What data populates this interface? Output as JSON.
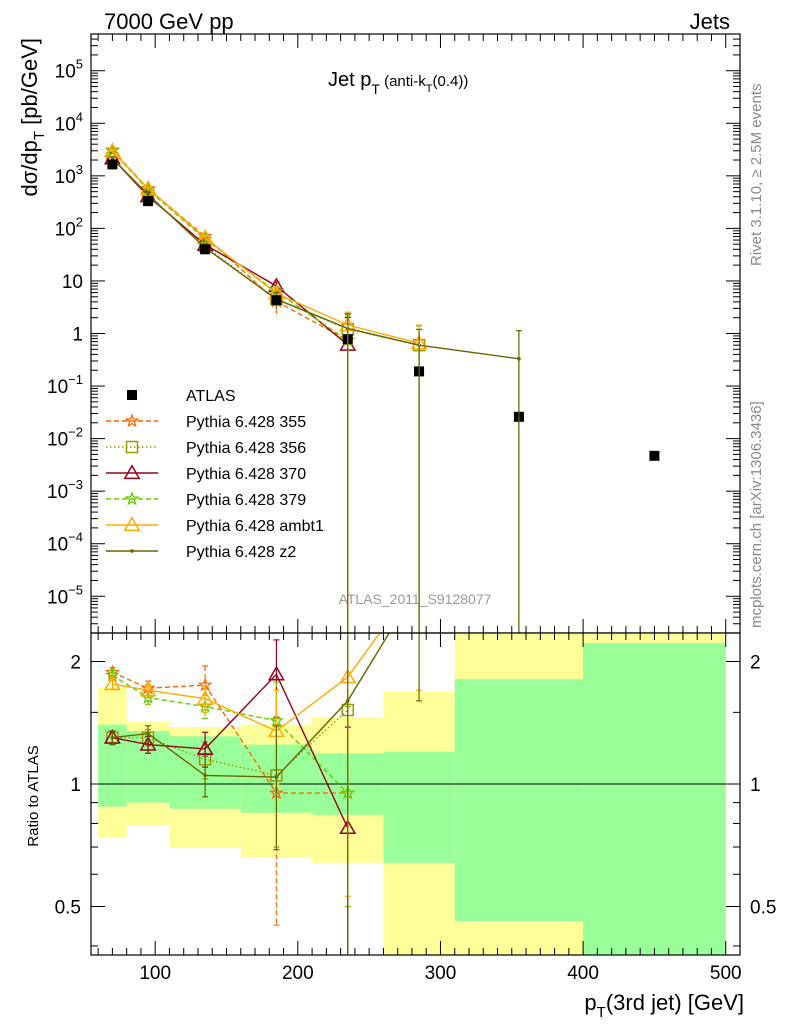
{
  "header": {
    "left": "7000 GeV pp",
    "right": "Jets",
    "side_top": "Rivet 3.1.10, ≥ 2.5M events",
    "side_bottom": "mcplots.cern.ch [arXiv:1306.3436]",
    "watermark": "ATLAS_2011_S9128077"
  },
  "chart_data": [
    {
      "panel": "main",
      "type": "scatter",
      "title": "Jet p_T (anti-k_T(0.4))",
      "title_main": "Jet p",
      "title_sub1": "T",
      "title_paren": " (anti-k",
      "title_sub2": "T",
      "title_end": "(0.4))",
      "ylabel": "dσ/dp_T [pb/GeV]",
      "ylabel_main": "dσ/dp",
      "ylabel_sub": "T",
      "ylabel_unit": " [pb/GeV]",
      "xlim": [
        55,
        510
      ],
      "ylim": [
        2e-06,
        500000
      ],
      "yscale": "log",
      "ytick_values": [
        1e-05,
        0.0001,
        0.001,
        0.01,
        0.1,
        1,
        10,
        100,
        1000,
        10000,
        100000
      ],
      "ytick_labels": [
        {
          "base": "10",
          "exp": "−5"
        },
        {
          "base": "10",
          "exp": "−4"
        },
        {
          "base": "10",
          "exp": "−3"
        },
        {
          "base": "10",
          "exp": "−2"
        },
        {
          "base": "10",
          "exp": "−1"
        },
        {
          "base": "1",
          "exp": ""
        },
        {
          "base": "10",
          "exp": ""
        },
        {
          "base": "10",
          "exp": "2"
        },
        {
          "base": "10",
          "exp": "3"
        },
        {
          "base": "10",
          "exp": "4"
        },
        {
          "base": "10",
          "exp": "5"
        }
      ],
      "legend_position": "lower-left",
      "series": [
        {
          "name": "ATLAS",
          "color": "#000000",
          "marker": "square",
          "line": "none",
          "x": [
            70,
            95,
            135,
            185,
            235,
            285,
            355,
            450
          ],
          "y": [
            1650,
            330,
            40,
            4.3,
            0.78,
            0.19,
            0.026,
            0.0047
          ]
        },
        {
          "name": "Pythia 6.428 355",
          "color": "#ff6600",
          "marker": "star",
          "line": "dashed",
          "x": [
            70,
            95,
            135,
            185,
            235
          ],
          "y": [
            3100,
            570,
            70,
            4.1,
            0.74
          ],
          "err_lo": [
            300,
            50,
            10,
            2.0,
            0.74
          ],
          "err_hi": [
            300,
            50,
            10,
            2.0,
            1.6
          ]
        },
        {
          "name": "Pythia 6.428 356",
          "color": "#999900",
          "marker": "open-square",
          "line": "dotted",
          "x": [
            70,
            95,
            135,
            185,
            235,
            285
          ],
          "y": [
            2150,
            430,
            46,
            4.5,
            1.2,
            0.6
          ],
          "err_lo": [
            150,
            40,
            8,
            1.5,
            1.2,
            0.6
          ],
          "err_hi": [
            150,
            40,
            8,
            1.5,
            1.2,
            0.8
          ]
        },
        {
          "name": "Pythia 6.428 370",
          "color": "#99001a",
          "marker": "open-triangle",
          "line": "solid",
          "x": [
            70,
            95,
            135,
            185,
            235
          ],
          "y": [
            2150,
            410,
            49,
            8.0,
            0.61
          ],
          "err_lo": [
            150,
            40,
            8,
            1.5,
            0.61
          ],
          "err_hi": [
            150,
            40,
            8,
            1.5,
            1.4
          ]
        },
        {
          "name": "Pythia 6.428 379",
          "color": "#66cc00",
          "marker": "star",
          "line": "dashed",
          "x": [
            70,
            95,
            135,
            185,
            235
          ],
          "y": [
            3000,
            540,
            62,
            6.2,
            0.74
          ],
          "err_lo": [
            200,
            40,
            8,
            1.5,
            0.74
          ],
          "err_hi": [
            200,
            40,
            8,
            1.5,
            1.4
          ]
        },
        {
          "name": "Pythia 6.428 ambt1",
          "color": "#ffaa00",
          "marker": "open-triangle",
          "line": "solid",
          "x": [
            70,
            95,
            135,
            185,
            235,
            285
          ],
          "y": [
            2950,
            570,
            66,
            5.8,
            1.45,
            0.65
          ],
          "err_lo": [
            200,
            40,
            8,
            1.5,
            1.45,
            0.65
          ],
          "err_hi": [
            200,
            40,
            8,
            1.5,
            1.1,
            0.8
          ]
        },
        {
          "name": "Pythia 6.428 z2",
          "color": "#666600",
          "marker": "dot",
          "line": "solid",
          "x": [
            70,
            95,
            135,
            185,
            235,
            285,
            355
          ],
          "y": [
            2150,
            440,
            43,
            4.5,
            1.25,
            0.6,
            0.33
          ],
          "err_lo": [
            150,
            40,
            8,
            1.5,
            1.25,
            0.6,
            0.33
          ],
          "err_hi": [
            150,
            40,
            8,
            1.5,
            1.1,
            0.6,
            0.8
          ]
        }
      ]
    },
    {
      "panel": "ratio",
      "type": "line",
      "ylabel": "Ratio to ATLAS",
      "xlabel": "p_T(3rd jet) [GeV]",
      "xlabel_main": "p",
      "xlabel_sub": "T",
      "xlabel_rest": "(3rd jet) [GeV]",
      "xlim": [
        55,
        510
      ],
      "ylim": [
        0.38,
        2.35
      ],
      "yscale": "log",
      "ytick_values": [
        0.5,
        1,
        2
      ],
      "ytick_labels": [
        "0.5",
        "1",
        "2"
      ],
      "xtick_values": [
        100,
        200,
        300,
        400,
        500
      ],
      "xtick_labels": [
        "100",
        "200",
        "300",
        "400",
        "500"
      ],
      "reference_line": 1,
      "bands": [
        {
          "x0": 60,
          "x1": 80,
          "yellow": [
            0.74,
            1.73
          ],
          "green": [
            0.88,
            1.4
          ]
        },
        {
          "x0": 80,
          "x1": 110,
          "yellow": [
            0.79,
            1.42
          ],
          "green": [
            0.9,
            1.35
          ]
        },
        {
          "x0": 110,
          "x1": 160,
          "yellow": [
            0.7,
            1.38
          ],
          "green": [
            0.87,
            1.31
          ]
        },
        {
          "x0": 160,
          "x1": 210,
          "yellow": [
            0.66,
            1.4
          ],
          "green": [
            0.85,
            1.25
          ]
        },
        {
          "x0": 210,
          "x1": 260,
          "yellow": [
            0.64,
            1.46
          ],
          "green": [
            0.84,
            1.19
          ]
        },
        {
          "x0": 260,
          "x1": 310,
          "yellow": [
            0.3,
            1.69
          ],
          "green": [
            0.64,
            1.2
          ]
        },
        {
          "x0": 310,
          "x1": 400,
          "yellow": [
            0.3,
            3.0
          ],
          "green": [
            0.46,
            1.81
          ]
        },
        {
          "x0": 400,
          "x1": 500,
          "yellow": [
            0.3,
            3.0
          ],
          "green": [
            0.3,
            2.22
          ]
        }
      ],
      "series": [
        {
          "name": "Pythia 6.428 355",
          "x": [
            70,
            95,
            135,
            185,
            235
          ],
          "y": [
            1.88,
            1.72,
            1.75,
            0.95,
            0.95
          ],
          "err_lo": [
            0.05,
            0.07,
            0.2,
            0.5,
            0.6
          ],
          "err_hi": [
            0.05,
            0.07,
            0.2,
            0.5,
            0.6
          ]
        },
        {
          "name": "Pythia 6.428 356",
          "x": [
            70,
            95,
            135,
            185,
            235
          ],
          "y": [
            1.3,
            1.3,
            1.15,
            1.05,
            1.52
          ],
          "err_lo": [
            0.05,
            0.06,
            0.12,
            0.35,
            1.3
          ],
          "err_hi": [
            0.05,
            0.06,
            0.12,
            0.35,
            1.5
          ]
        },
        {
          "name": "Pythia 6.428 370",
          "x": [
            70,
            95,
            135,
            185,
            235
          ],
          "y": [
            1.3,
            1.25,
            1.22,
            1.86,
            0.78
          ],
          "err_lo": [
            0.05,
            0.06,
            0.12,
            0.4,
            0.45
          ],
          "err_hi": [
            0.05,
            0.06,
            0.12,
            0.4,
            0.6
          ]
        },
        {
          "name": "Pythia 6.428 379",
          "x": [
            70,
            95,
            135,
            185,
            235
          ],
          "y": [
            1.85,
            1.63,
            1.55,
            1.43,
            0.95
          ],
          "err_lo": [
            0.05,
            0.06,
            0.1,
            0.35,
            0.45
          ],
          "err_hi": [
            0.05,
            0.06,
            0.1,
            0.35,
            0.6
          ]
        },
        {
          "name": "Pythia 6.428 ambt1",
          "x": [
            70,
            95,
            135,
            185,
            235,
            285
          ],
          "y": [
            1.76,
            1.7,
            1.62,
            1.35,
            1.83,
            3.2
          ],
          "err_lo": [
            0.05,
            0.06,
            0.12,
            0.35,
            1.3,
            1.5
          ],
          "err_hi": [
            0.05,
            0.06,
            0.12,
            0.35,
            1.5,
            1.5
          ]
        },
        {
          "name": "Pythia 6.428 z2",
          "x": [
            70,
            95,
            135,
            185,
            235,
            285
          ],
          "y": [
            1.3,
            1.33,
            1.05,
            1.04,
            1.6,
            3.1
          ],
          "err_lo": [
            0.05,
            0.06,
            0.12,
            0.35,
            1.3,
            1.5
          ],
          "err_hi": [
            0.05,
            0.06,
            0.12,
            0.35,
            1.5,
            1.5
          ]
        }
      ]
    }
  ]
}
